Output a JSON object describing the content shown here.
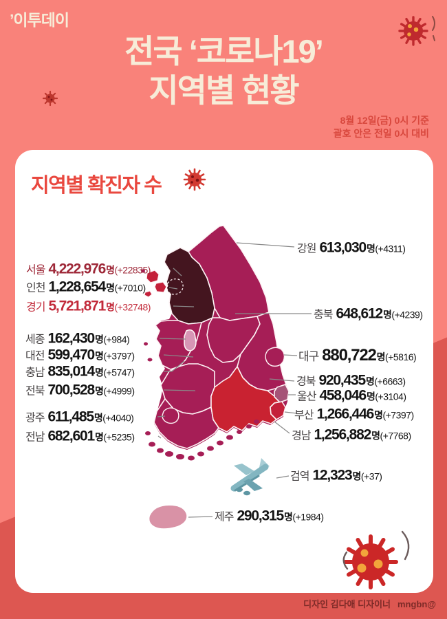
{
  "header": {
    "logo": "’이투데이",
    "title_line1": "전국 ‘코로나19’",
    "title_line2": "지역별 현황",
    "date_line1": "8월 12일(금) 0시 기준",
    "date_line2": "괄호 안은 전일 0시 대비"
  },
  "card": {
    "title": "지역별 확진자 수"
  },
  "regions": [
    {
      "name": "서울",
      "value": "4,222,976",
      "suffix": "명",
      "delta": "(+22835)",
      "emphasis": "dark-red"
    },
    {
      "name": "인천",
      "value": "1,228,654",
      "suffix": "명",
      "delta": "(+7010)",
      "emphasis": "none"
    },
    {
      "name": "경기",
      "value": "5,721,871",
      "suffix": "명",
      "delta": "(+32748)",
      "emphasis": "red"
    },
    {
      "name": "세종",
      "value": "162,430",
      "suffix": "명",
      "delta": "(+984)",
      "emphasis": "none"
    },
    {
      "name": "대전",
      "value": "599,470",
      "suffix": "명",
      "delta": "(+3797)",
      "emphasis": "none"
    },
    {
      "name": "충남",
      "value": "835,014",
      "suffix": "명",
      "delta": "(+5747)",
      "emphasis": "none"
    },
    {
      "name": "전북",
      "value": "700,528",
      "suffix": "명",
      "delta": "(+4999)",
      "emphasis": "none"
    },
    {
      "name": "광주",
      "value": "611,485",
      "suffix": "명",
      "delta": "(+4040)",
      "emphasis": "none"
    },
    {
      "name": "전남",
      "value": "682,601",
      "suffix": "명",
      "delta": "(+5235)",
      "emphasis": "none"
    },
    {
      "name": "강원",
      "value": "613,030",
      "suffix": "명",
      "delta": "(+4311)",
      "emphasis": "none"
    },
    {
      "name": "충북",
      "value": "648,612",
      "suffix": "명",
      "delta": "(+4239)",
      "emphasis": "none"
    },
    {
      "name": "대구",
      "value": "880,722",
      "suffix": "명",
      "delta": "(+5816)",
      "emphasis": "none"
    },
    {
      "name": "경북",
      "value": "920,435",
      "suffix": "명",
      "delta": "(+6663)",
      "emphasis": "none"
    },
    {
      "name": "울산",
      "value": "458,046",
      "suffix": "명",
      "delta": "(+3104)",
      "emphasis": "none"
    },
    {
      "name": "부산",
      "value": "1,266,446",
      "suffix": "명",
      "delta": "(+7397)",
      "emphasis": "none"
    },
    {
      "name": "경남",
      "value": "1,256,882",
      "suffix": "명",
      "delta": "(+7768)",
      "emphasis": "none"
    },
    {
      "name": "검역",
      "value": "12,323",
      "suffix": "명",
      "delta": "(+37)",
      "emphasis": "none"
    },
    {
      "name": "제주",
      "value": "290,315",
      "suffix": "명",
      "delta": "(+1984)",
      "emphasis": "none"
    }
  ],
  "footer": {
    "credit": "디자인 김다애 디자이너",
    "email": "mngbn@"
  },
  "colors": {
    "bg-top": "#F9827A",
    "bg-bottom": "#DD5751",
    "cream": "#F7ECD8",
    "header-red": "#D8473D",
    "card-title-red": "#E9483F",
    "map-base": "#A61E56",
    "map-dark": "#44151F",
    "map-red": "#C4203A",
    "map-bright-red": "#C92231",
    "map-mauve": "#A65377",
    "map-pink-sejong": "#D796B5",
    "map-jeju": "#D992A6",
    "seoul-text": "#9E2838",
    "gyeonggi-text": "#C22A3A",
    "label-gray": "#474344",
    "number-black": "#141414",
    "line-gray": "#8A8A8A",
    "virus-red": "#C42B2B",
    "virus-dot-orange": "#F2A43B",
    "virus-dot-dark": "#7E1114",
    "plane-teal": "#83B6C1",
    "footer-text": "#7E2B28"
  }
}
